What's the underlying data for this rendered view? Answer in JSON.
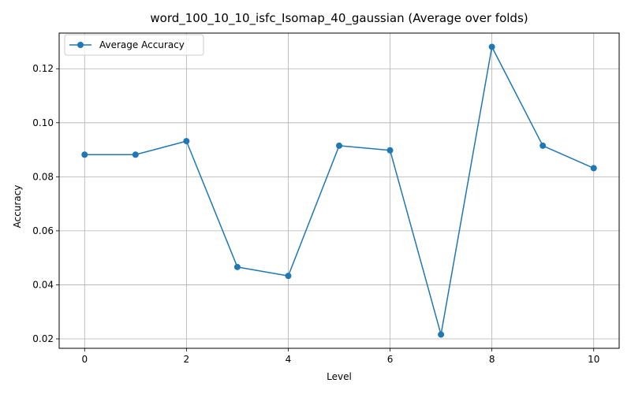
{
  "chart_data": {
    "type": "line",
    "title": "word_100_10_10_isfc_Isomap_40_gaussian (Average over folds)",
    "xlabel": "Level",
    "ylabel": "Accuracy",
    "x": [
      0,
      1,
      2,
      3,
      4,
      5,
      6,
      7,
      8,
      9,
      10
    ],
    "series": [
      {
        "name": "Average Accuracy",
        "values": [
          0.0882,
          0.0882,
          0.0932,
          0.0466,
          0.0433,
          0.0915,
          0.0898,
          0.0216,
          0.1281,
          0.0915,
          0.0832
        ],
        "color": "#1f77b4",
        "marker": "circle"
      }
    ],
    "xlim": [
      -0.5,
      10.5
    ],
    "ylim": [
      0.0165,
      0.1332
    ],
    "xticks": [
      0,
      2,
      4,
      6,
      8,
      10
    ],
    "xtick_labels": [
      "0",
      "2",
      "4",
      "6",
      "8",
      "10"
    ],
    "yticks": [
      0.02,
      0.04,
      0.06,
      0.08,
      0.1,
      0.12
    ],
    "ytick_labels": [
      "0.02",
      "0.04",
      "0.06",
      "0.08",
      "0.10",
      "0.12"
    ],
    "grid": true,
    "legend_position": "top-left"
  }
}
